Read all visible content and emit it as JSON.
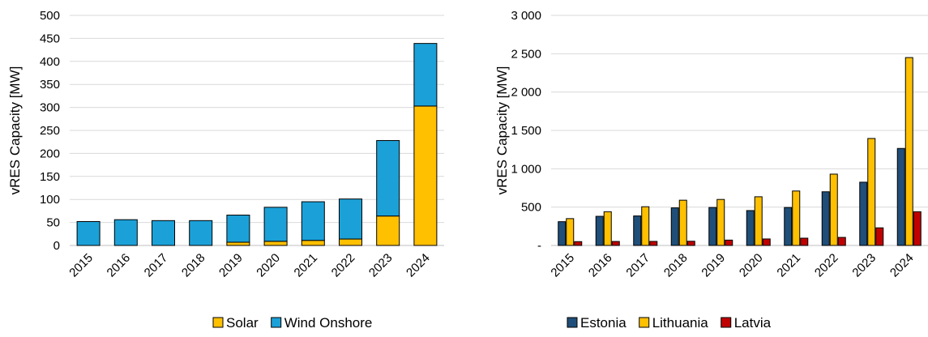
{
  "chart_data": [
    {
      "type": "bar",
      "stacked": true,
      "categories": [
        "2015",
        "2016",
        "2017",
        "2018",
        "2019",
        "2020",
        "2021",
        "2022",
        "2023",
        "2024"
      ],
      "series": [
        {
          "name": "Solar",
          "color": "#FFC000",
          "values": [
            0,
            0,
            0,
            0,
            7,
            9,
            11,
            14,
            64,
            303
          ]
        },
        {
          "name": "Wind Onshore",
          "color": "#1BA1D8",
          "values": [
            52,
            56,
            54,
            54,
            59,
            74,
            84,
            87,
            164,
            136
          ]
        }
      ],
      "ylabel": "vRES Capacity [MW]",
      "ylim": [
        0,
        500
      ],
      "yticks": [
        "0",
        "50",
        "100",
        "150",
        "200",
        "250",
        "300",
        "350",
        "400",
        "450",
        "500"
      ],
      "grid": true,
      "legend_position": "bottom"
    },
    {
      "type": "bar",
      "categories": [
        "2015",
        "2016",
        "2017",
        "2018",
        "2019",
        "2020",
        "2021",
        "2022",
        "2023",
        "2024"
      ],
      "series": [
        {
          "name": "Estonia",
          "color": "#1F4E79",
          "values": [
            310,
            380,
            385,
            490,
            495,
            455,
            495,
            700,
            825,
            1265
          ]
        },
        {
          "name": "Lithuania",
          "color": "#FFC000",
          "values": [
            350,
            440,
            505,
            590,
            600,
            635,
            710,
            930,
            1395,
            2450
          ]
        },
        {
          "name": "Latvia",
          "color": "#C00000",
          "values": [
            50,
            52,
            53,
            55,
            70,
            85,
            95,
            105,
            230,
            440
          ]
        }
      ],
      "ylabel": "vRES Capacity [MW]",
      "ylim": [
        0,
        3000
      ],
      "yticks": [
        "-",
        "500",
        "1 000",
        "1 500",
        "2 000",
        "2 500",
        "3 000"
      ],
      "grid": true,
      "legend_position": "bottom"
    }
  ]
}
